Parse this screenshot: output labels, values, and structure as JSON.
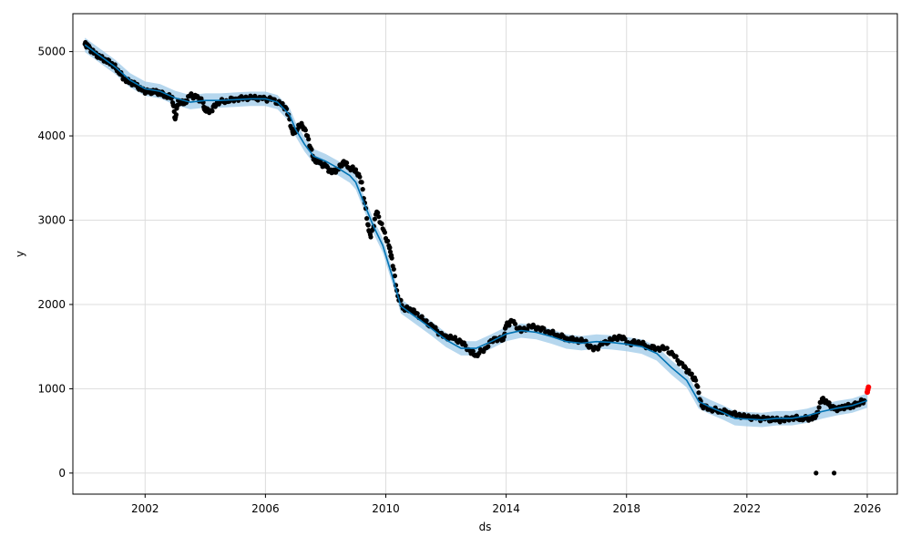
{
  "chart_data": {
    "type": "scatter",
    "title": "",
    "xlabel": "ds",
    "ylabel": "y",
    "xlim": [
      1999.6,
      2027.0
    ],
    "ylim": [
      -250,
      5450
    ],
    "grid": true,
    "x_ticks": [
      2002,
      2006,
      2010,
      2014,
      2018,
      2022,
      2026
    ],
    "x_tick_labels": [
      "2002",
      "2006",
      "2010",
      "2014",
      "2018",
      "2022",
      "2026"
    ],
    "y_ticks": [
      0,
      1000,
      2000,
      3000,
      4000,
      5000
    ],
    "y_tick_labels": [
      "0",
      "1000",
      "2000",
      "3000",
      "4000",
      "5000"
    ],
    "colors": {
      "observed": "#000000",
      "forecast_line": "#0072B2",
      "interval": "#9ecae8",
      "recent_points": "#ff0000",
      "grid": "#dddddd"
    },
    "forecast_yhat": {
      "x": [
        2000.0,
        2000.5,
        2001.0,
        2001.5,
        2002.0,
        2002.5,
        2003.0,
        2003.5,
        2004.0,
        2004.5,
        2005.0,
        2005.5,
        2006.0,
        2006.4,
        2006.8,
        2007.0,
        2007.3,
        2007.6,
        2008.0,
        2008.4,
        2008.8,
        2009.0,
        2009.3,
        2009.6,
        2009.9,
        2010.2,
        2010.5,
        2011.0,
        2011.5,
        2012.0,
        2012.5,
        2013.0,
        2013.5,
        2014.0,
        2014.5,
        2015.0,
        2015.5,
        2016.0,
        2016.5,
        2017.0,
        2017.5,
        2018.0,
        2018.5,
        2019.0,
        2019.5,
        2020.0,
        2020.4,
        2020.8,
        2021.2,
        2021.6,
        2022.0,
        2022.5,
        2023.0,
        2023.5,
        2024.0,
        2024.5,
        2025.0,
        2025.5,
        2026.0
      ],
      "y": [
        5080,
        4950,
        4820,
        4660,
        4560,
        4530,
        4450,
        4400,
        4420,
        4420,
        4430,
        4440,
        4440,
        4400,
        4250,
        4080,
        3900,
        3760,
        3700,
        3620,
        3530,
        3450,
        3180,
        2920,
        2700,
        2350,
        1980,
        1850,
        1720,
        1580,
        1480,
        1480,
        1560,
        1650,
        1690,
        1670,
        1620,
        1560,
        1540,
        1560,
        1550,
        1530,
        1500,
        1420,
        1250,
        1100,
        850,
        780,
        720,
        650,
        640,
        630,
        650,
        650,
        680,
        730,
        770,
        800,
        860
      ]
    },
    "interval_halfwidth": 85,
    "observed": {
      "x": [
        2000.0,
        2000.1,
        2000.3,
        2000.5,
        2000.7,
        2000.9,
        2001.1,
        2001.3,
        2001.5,
        2001.7,
        2001.9,
        2002.1,
        2002.3,
        2002.5,
        2002.7,
        2002.9,
        2003.0,
        2003.1,
        2003.3,
        2003.5,
        2003.7,
        2003.9,
        2004.0,
        2004.2,
        2004.4,
        2004.7,
        2005.0,
        2005.3,
        2005.6,
        2005.9,
        2006.2,
        2006.5,
        2006.7,
        2006.9,
        2007.0,
        2007.2,
        2007.4,
        2007.6,
        2007.8,
        2008.0,
        2008.2,
        2008.4,
        2008.6,
        2008.8,
        2009.0,
        2009.2,
        2009.4,
        2009.5,
        2009.7,
        2009.9,
        2010.1,
        2010.2,
        2010.4,
        2010.6,
        2010.8,
        2011.0,
        2011.3,
        2011.6,
        2011.9,
        2012.2,
        2012.5,
        2012.8,
        2013.0,
        2013.3,
        2013.6,
        2013.9,
        2014.0,
        2014.2,
        2014.5,
        2014.8,
        2015.1,
        2015.4,
        2015.7,
        2016.0,
        2016.3,
        2016.6,
        2016.9,
        2017.2,
        2017.5,
        2017.8,
        2018.1,
        2018.4,
        2018.7,
        2019.0,
        2019.3,
        2019.6,
        2019.9,
        2020.1,
        2020.3,
        2020.5,
        2020.8,
        2021.1,
        2021.4,
        2021.7,
        2022.0,
        2022.3,
        2022.6,
        2022.9,
        2023.2,
        2023.5,
        2023.8,
        2024.1,
        2024.3,
        2024.5,
        2024.7,
        2024.9,
        2025.1,
        2025.3,
        2025.5,
        2025.7,
        2025.9
      ],
      "y": [
        5090,
        5060,
        4980,
        4930,
        4900,
        4860,
        4780,
        4680,
        4640,
        4600,
        4540,
        4520,
        4520,
        4510,
        4480,
        4460,
        4200,
        4420,
        4380,
        4480,
        4460,
        4410,
        4300,
        4300,
        4400,
        4420,
        4440,
        4450,
        4450,
        4440,
        4430,
        4380,
        4320,
        4050,
        4060,
        4150,
        4000,
        3720,
        3680,
        3640,
        3560,
        3600,
        3700,
        3620,
        3600,
        3450,
        2950,
        2800,
        3100,
        2900,
        2700,
        2550,
        2100,
        1950,
        1950,
        1900,
        1800,
        1720,
        1620,
        1600,
        1560,
        1450,
        1400,
        1480,
        1600,
        1580,
        1750,
        1800,
        1680,
        1740,
        1720,
        1680,
        1640,
        1600,
        1580,
        1560,
        1460,
        1530,
        1580,
        1620,
        1540,
        1560,
        1500,
        1480,
        1480,
        1380,
        1260,
        1180,
        1100,
        800,
        760,
        740,
        720,
        690,
        660,
        650,
        640,
        630,
        630,
        660,
        650,
        650,
        680,
        880,
        820,
        760,
        760,
        790,
        800,
        830,
        860
      ],
      "outliers_x": [
        2024.3,
        2024.9
      ],
      "outliers_y": [
        0,
        0
      ]
    },
    "recent": {
      "x": [
        2026.0,
        2026.02,
        2026.04
      ],
      "y": [
        960,
        990,
        1020
      ]
    }
  }
}
